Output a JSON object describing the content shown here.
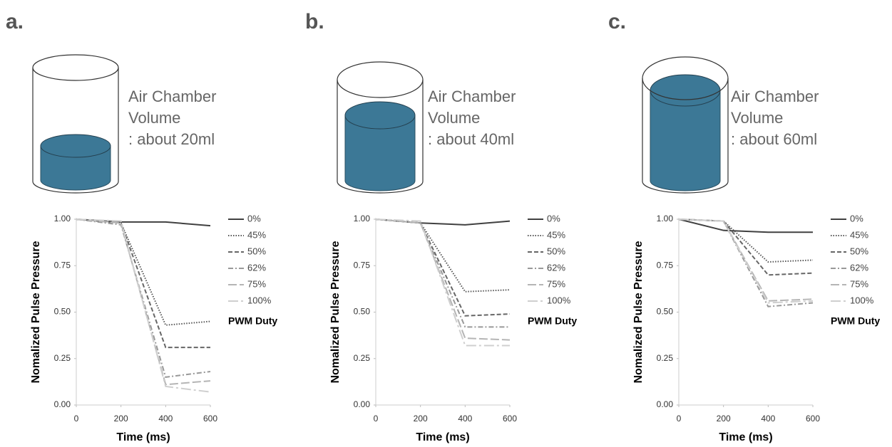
{
  "chart_data": [
    {
      "type": "line",
      "panel_label": "a.",
      "annotation": [
        "Air Chamber",
        "Volume",
        ": about 20ml"
      ],
      "xlabel": "Time (ms)",
      "ylabel": "Nomalized Pulse Pressure",
      "legend_title": "PWM Duty",
      "x": [
        0,
        200,
        400,
        600
      ],
      "xlim": [
        0,
        600
      ],
      "xticks": [
        0,
        200,
        400,
        600
      ],
      "ylim": [
        0,
        1
      ],
      "yticks": [
        {
          "value": 0,
          "label": "0.00"
        },
        0.25,
        {
          "value": 0.5,
          "label": "0.50"
        },
        0.75,
        {
          "value": 1,
          "label": "1.00"
        }
      ],
      "legend": "right",
      "series": [
        {
          "name": "0%",
          "color": "#404040",
          "dash": "solid",
          "values": [
            1,
            0.985,
            0.985,
            0.965
          ]
        },
        {
          "name": "45%",
          "color": "#555555",
          "dash": "dotted",
          "values": [
            1,
            0.98,
            0.43,
            0.45
          ]
        },
        {
          "name": "50%",
          "color": "#666666",
          "dash": "dashed",
          "values": [
            1,
            0.98,
            0.31,
            0.31
          ]
        },
        {
          "name": "62%",
          "color": "#999999",
          "dash": "dashdot",
          "values": [
            1,
            0.97,
            0.15,
            0.18
          ]
        },
        {
          "name": "75%",
          "color": "#b5b5b5",
          "dash": "longdash",
          "values": [
            1,
            0.98,
            0.11,
            0.13
          ]
        },
        {
          "name": "100%",
          "color": "#cfcfcf",
          "dash": "longdashdot",
          "values": [
            1,
            0.99,
            0.1,
            0.07
          ]
        }
      ]
    },
    {
      "type": "line",
      "panel_label": "b.",
      "annotation": [
        "Air Chamber",
        "Volume",
        ": about 40ml"
      ],
      "xlabel": "Time (ms)",
      "ylabel": "Nomalized Pulse Pressure",
      "legend_title": "PWM Duty",
      "x": [
        0,
        200,
        400,
        600
      ],
      "xlim": [
        0,
        600
      ],
      "xticks": [
        0,
        200,
        400,
        600
      ],
      "ylim": [
        0,
        1
      ],
      "yticks": [
        {
          "value": 0,
          "label": "0.00"
        },
        0.25,
        {
          "value": 0.5,
          "label": "0.50"
        },
        0.75,
        {
          "value": 1,
          "label": "1.00"
        }
      ],
      "legend": "right",
      "series": [
        {
          "name": "0%",
          "color": "#404040",
          "dash": "solid",
          "values": [
            1,
            0.98,
            0.97,
            0.99
          ]
        },
        {
          "name": "45%",
          "color": "#555555",
          "dash": "dotted",
          "values": [
            1,
            0.98,
            0.61,
            0.62
          ]
        },
        {
          "name": "50%",
          "color": "#666666",
          "dash": "dashed",
          "values": [
            1,
            0.98,
            0.48,
            0.49
          ]
        },
        {
          "name": "62%",
          "color": "#999999",
          "dash": "dashdot",
          "values": [
            1,
            0.98,
            0.42,
            0.42
          ]
        },
        {
          "name": "75%",
          "color": "#b5b5b5",
          "dash": "longdash",
          "values": [
            1,
            0.98,
            0.36,
            0.35
          ]
        },
        {
          "name": "100%",
          "color": "#cfcfcf",
          "dash": "longdashdot",
          "values": [
            1,
            0.99,
            0.32,
            0.32
          ]
        }
      ]
    },
    {
      "type": "line",
      "panel_label": "c.",
      "annotation": [
        "Air Chamber",
        "Volume",
        ": about 60ml"
      ],
      "xlabel": "Time (ms)",
      "ylabel": "Nomalized Pulse Pressure",
      "legend_title": "PWM Duty",
      "x": [
        0,
        200,
        400,
        600
      ],
      "xlim": [
        0,
        600
      ],
      "xticks": [
        0,
        200,
        400,
        600
      ],
      "ylim": [
        0,
        1
      ],
      "yticks": [
        {
          "value": 0,
          "label": "0.00"
        },
        0.25,
        {
          "value": 0.5,
          "label": "0.50"
        },
        0.75,
        {
          "value": 1,
          "label": "1.00"
        }
      ],
      "legend": "right",
      "series": [
        {
          "name": "0%",
          "color": "#404040",
          "dash": "solid",
          "values": [
            1,
            0.94,
            0.93,
            0.93
          ]
        },
        {
          "name": "45%",
          "color": "#555555",
          "dash": "dotted",
          "values": [
            1,
            0.99,
            0.77,
            0.78
          ]
        },
        {
          "name": "50%",
          "color": "#666666",
          "dash": "dashed",
          "values": [
            1,
            0.99,
            0.7,
            0.71
          ]
        },
        {
          "name": "62%",
          "color": "#999999",
          "dash": "dashdot",
          "values": [
            1,
            0.99,
            0.53,
            0.55
          ]
        },
        {
          "name": "75%",
          "color": "#b5b5b5",
          "dash": "longdash",
          "values": [
            1,
            0.99,
            0.56,
            0.57
          ]
        },
        {
          "name": "100%",
          "color": "#cfcfcf",
          "dash": "longdashdot",
          "values": [
            1,
            0.99,
            0.55,
            0.56
          ]
        }
      ]
    }
  ]
}
